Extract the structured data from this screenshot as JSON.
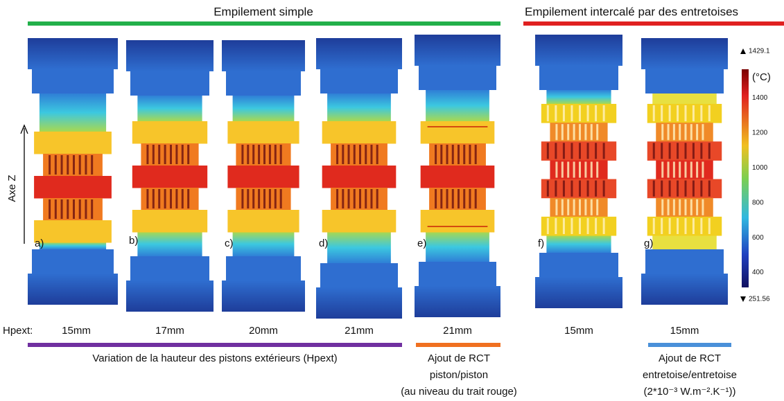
{
  "headers": {
    "simple": "Empilement simple",
    "intercale": "Empilement intercalé par des entretoises"
  },
  "axis_label": "Axe Z",
  "hpext_label": "Hpext:",
  "panels": [
    {
      "label": "a)",
      "hpext": "15mm"
    },
    {
      "label": "b)",
      "hpext": "17mm"
    },
    {
      "label": "c)",
      "hpext": "20mm"
    },
    {
      "label": "d)",
      "hpext": "21mm"
    },
    {
      "label": "e)",
      "hpext": "21mm"
    },
    {
      "label": "f)",
      "hpext": "15mm"
    },
    {
      "label": "g)",
      "hpext": "15mm"
    }
  ],
  "captions": {
    "variation": "Variation de la hauteur des pistons extérieurs (Hpext)",
    "rct_piston": [
      "Ajout de RCT",
      "piston/piston",
      "(au niveau du trait rouge)"
    ],
    "rct_entretoise": [
      "Ajout de RCT",
      "entretoise/entretoise",
      "(2*10⁻³ W.m⁻².K⁻¹))"
    ]
  },
  "colorbar": {
    "unit": "(°C)",
    "max": 1429.1,
    "min": 251.56,
    "ticks": [
      1400,
      1200,
      1000,
      800,
      600,
      400
    ]
  }
}
